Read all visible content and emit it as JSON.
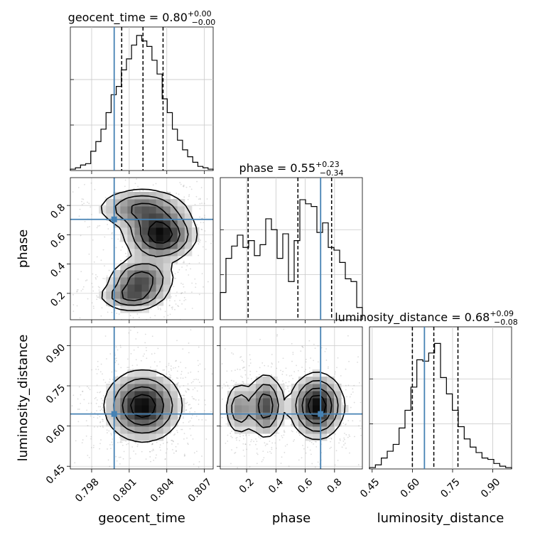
{
  "chart_data": {
    "type": "corner",
    "truth_color": "#4682b4",
    "parameters": [
      {
        "key": "geocent_time",
        "label": "geocent_time",
        "range": [
          0.7963,
          0.8077
        ],
        "truth": 0.7998,
        "quantiles": [
          0.8004,
          0.8021,
          0.8037
        ],
        "ticks": [
          "0.798",
          "0.801",
          "0.804",
          "0.807"
        ],
        "tick_values": [
          0.798,
          0.801,
          0.804,
          0.807
        ],
        "hist_norm": [
          0.01,
          0.02,
          0.04,
          0.05,
          0.14,
          0.21,
          0.3,
          0.42,
          0.55,
          0.61,
          0.73,
          0.81,
          0.91,
          0.98,
          0.94,
          0.9,
          0.8,
          0.7,
          0.52,
          0.42,
          0.3,
          0.22,
          0.15,
          0.1,
          0.06,
          0.03,
          0.02,
          0.01
        ],
        "title_main": "geocent_time = 0.80",
        "title_plus": "+0.00",
        "title_minus": "−0.00"
      },
      {
        "key": "phase",
        "label": "phase",
        "range": [
          0.02,
          0.99
        ],
        "truth": 0.705,
        "quantiles": [
          0.21,
          0.55,
          0.78
        ],
        "ticks": [
          "0.2",
          "0.4",
          "0.6",
          "0.8"
        ],
        "tick_values": [
          0.2,
          0.4,
          0.6,
          0.8
        ],
        "hist_norm": [
          0.2,
          0.45,
          0.54,
          0.62,
          0.53,
          0.58,
          0.47,
          0.55,
          0.74,
          0.66,
          0.45,
          0.63,
          0.28,
          0.58,
          0.88,
          0.85,
          0.83,
          0.64,
          0.71,
          0.53,
          0.51,
          0.42,
          0.3,
          0.28,
          0.09
        ],
        "title_main": "phase = 0.55",
        "title_plus": "+0.23",
        "title_minus": "−0.34"
      },
      {
        "key": "luminosity_distance",
        "label": "luminosity_distance",
        "range": [
          0.44,
          0.97
        ],
        "truth": 0.645,
        "quantiles": [
          0.6,
          0.68,
          0.77
        ],
        "ticks": [
          "0.45",
          "0.60",
          "0.75",
          "0.90"
        ],
        "tick_values": [
          0.45,
          0.6,
          0.75,
          0.9
        ],
        "hist_norm": [
          0.01,
          0.03,
          0.08,
          0.13,
          0.18,
          0.3,
          0.43,
          0.6,
          0.8,
          0.79,
          0.85,
          0.92,
          0.67,
          0.55,
          0.43,
          0.31,
          0.22,
          0.16,
          0.12,
          0.08,
          0.07,
          0.04,
          0.02,
          0.01
        ],
        "title_main": "luminosity_distance = 0.68",
        "title_plus": "+0.09",
        "title_minus": "−0.08"
      }
    ],
    "modes": {
      "geocent_time-phase": [
        {
          "x": 0.8035,
          "y": 0.6,
          "sx": 0.0014,
          "sy": 0.09,
          "w": 1.0
        },
        {
          "x": 0.802,
          "y": 0.78,
          "sx": 0.0018,
          "sy": 0.07,
          "w": 0.6
        },
        {
          "x": 0.802,
          "y": 0.3,
          "sx": 0.0013,
          "sy": 0.07,
          "w": 0.7
        },
        {
          "x": 0.8012,
          "y": 0.18,
          "sx": 0.0013,
          "sy": 0.05,
          "w": 0.6
        }
      ],
      "geocent_time-luminosity_distance": [
        {
          "x": 0.8021,
          "y": 0.675,
          "sx": 0.0015,
          "sy": 0.065,
          "w": 1.0
        }
      ],
      "phase-luminosity_distance": [
        {
          "x": 0.68,
          "y": 0.675,
          "sx": 0.09,
          "sy": 0.06,
          "w": 1.0
        },
        {
          "x": 0.33,
          "y": 0.675,
          "sx": 0.06,
          "sy": 0.06,
          "w": 0.75
        },
        {
          "x": 0.15,
          "y": 0.665,
          "sx": 0.05,
          "sy": 0.05,
          "w": 0.5
        }
      ]
    }
  }
}
